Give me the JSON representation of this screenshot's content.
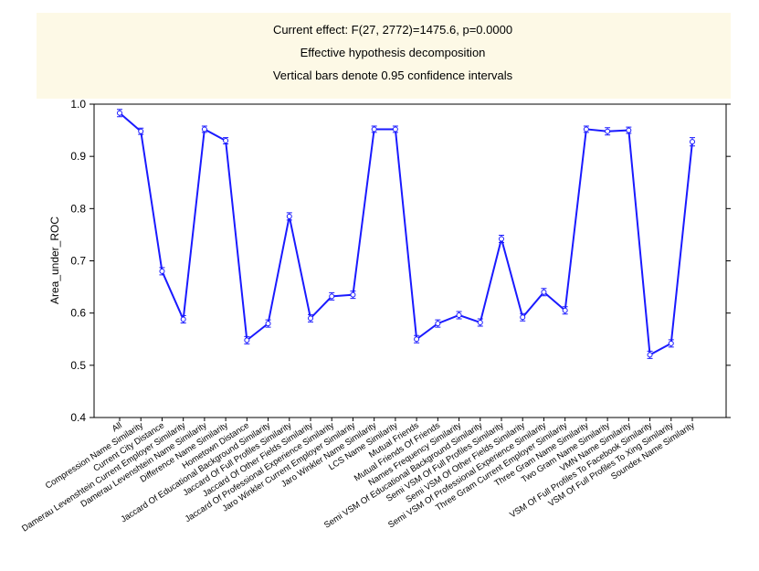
{
  "chart_data": {
    "type": "line",
    "title": [
      "Current effect: F(27, 2772)=1475.6, p=0.0000",
      "Effective hypothesis decomposition",
      "Vertical bars denote 0.95 confidence intervals"
    ],
    "y_label": "Area_under_ROC",
    "categories": [
      "All",
      "Compression Name Similarity",
      "Current City Distance",
      "Damerau Levenshtein Current Employer Similarity",
      "Damerau Levenshtein Name Similarity",
      "Difference Name Similarity",
      "Hometown Distance",
      "Jaccard Of Educational Background Similarity",
      "Jaccard Of Full Profiles Similarity",
      "Jaccard Of Other Fields Similarity",
      "Jaccard Of Professional Experience Similarity",
      "Jaro Winkler Current Employer Similarity",
      "Jaro Winkler Name Similarity",
      "LCS Name Similarity",
      "Mutual Friends",
      "Mutual Friends Of Friends",
      "Names Frequency Similarity",
      "Semi VSM Of Educational Background Similarity",
      "Semi VSM Of Full Profiles Similarity",
      "Semi VSM Of Other Fields Similarity",
      "Semi VSM Of Professional Experience Similarity",
      "Three Gram Current Employer Similarity",
      "Three Gram Name Similarity",
      "Two Gram Name Similarity",
      "VMN Name Similarity",
      "VSM Of Full Profiles To Facebook Similarity",
      "VSM Of Full Profiles To Xing Similarity",
      "Soundex Name Similarity"
    ],
    "values": [
      0.983,
      0.948,
      0.68,
      0.588,
      0.952,
      0.93,
      0.548,
      0.58,
      0.785,
      0.59,
      0.632,
      0.635,
      0.952,
      0.952,
      0.55,
      0.58,
      0.596,
      0.582,
      0.742,
      0.592,
      0.64,
      0.605,
      0.952,
      0.948,
      0.95,
      0.52,
      0.542,
      0.928
    ],
    "errors": [
      0.007,
      0.006,
      0.007,
      0.007,
      0.006,
      0.006,
      0.007,
      0.007,
      0.007,
      0.007,
      0.007,
      0.007,
      0.006,
      0.006,
      0.007,
      0.007,
      0.007,
      0.007,
      0.007,
      0.007,
      0.007,
      0.007,
      0.006,
      0.007,
      0.006,
      0.007,
      0.007,
      0.008
    ],
    "color": "#1a1aff",
    "ylim": [
      0.4,
      1.0
    ],
    "yticks": [
      0.4,
      0.5,
      0.6,
      0.7,
      0.8,
      0.9,
      {
        "value": 1.0,
        "label": "1.0"
      }
    ]
  }
}
